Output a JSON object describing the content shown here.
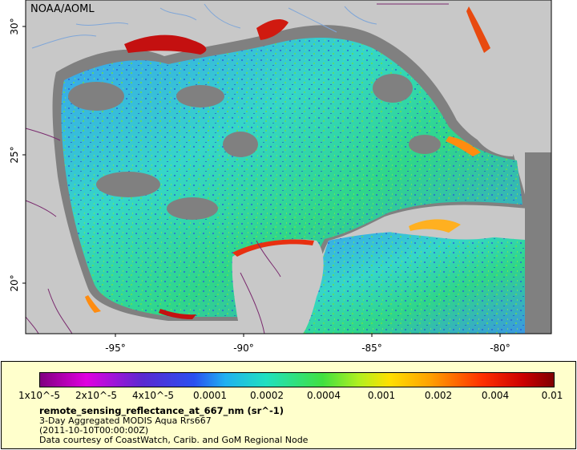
{
  "credit": "NOAA/AOML",
  "axes": {
    "lat_labels": [
      "30°",
      "25°",
      "20°"
    ],
    "lon_labels": [
      "-95°",
      "-90°",
      "-85°",
      "-80°"
    ]
  },
  "colors": {
    "land": "#c8c8c8",
    "nodata": "#808080",
    "border": "#7a2a6e",
    "river": "#7fa6d8",
    "legend_bg": "#ffffcc"
  },
  "legend": {
    "tick_labels": [
      "1x10^-5",
      "2x10^-5",
      "4x10^-5",
      "0.0001",
      "0.0002",
      "0.0004",
      "0.001",
      "0.002",
      "0.004",
      "0.01"
    ],
    "variable": "remote_sensing_reflectance_at_667_nm (sr^-1)",
    "product": "3-Day Aggregated MODIS Aqua Rrs667",
    "time": "(2011-10-10T00:00:00Z)",
    "source": "Data courtesy of CoastWatch, Carib. and GoM Regional Node"
  }
}
